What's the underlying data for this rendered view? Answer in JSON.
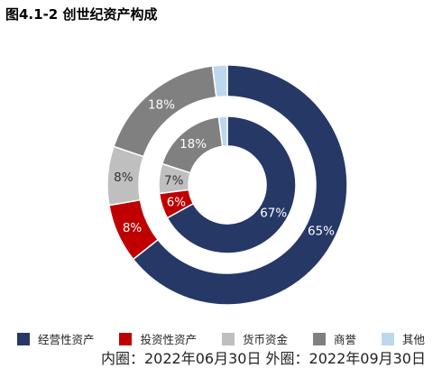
{
  "title": "图4.1-2 创世纪资产构成",
  "chart_data": {
    "type": "donut",
    "categories": [
      "经营性资产",
      "投资性资产",
      "货币资金",
      "商誉",
      "其他"
    ],
    "colors": [
      "#263866",
      "#c00000",
      "#bfbfbf",
      "#808080",
      "#bdd7ee"
    ],
    "series": [
      {
        "ring": "inner",
        "label": "内圈：2022年06月30日",
        "values": [
          67,
          6,
          7,
          18,
          2
        ],
        "value_labels": [
          "67%",
          "6%",
          "7%",
          "18%",
          ""
        ]
      },
      {
        "ring": "outer",
        "label": "外圈：2022年09月30日",
        "values": [
          65,
          8,
          8,
          18,
          2
        ],
        "value_labels": [
          "65%",
          "8%",
          "8%",
          "18%",
          ""
        ]
      }
    ],
    "legend_position": "bottom"
  },
  "footnote": {
    "inner": "内圈：2022年06月30日",
    "outer": "外圈：2022年09月30日"
  }
}
